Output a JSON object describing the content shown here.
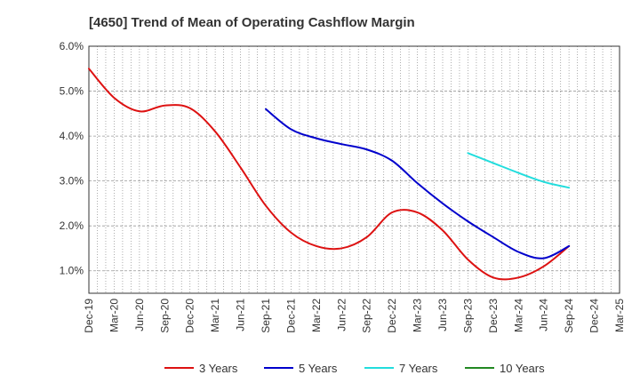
{
  "chart_data": {
    "type": "line",
    "title": "[4650]  Trend of Mean of Operating Cashflow Margin",
    "xlabel": "",
    "ylabel": "",
    "ylim": [
      0.5,
      6.0
    ],
    "y_ticks": [
      "1.0%",
      "2.0%",
      "3.0%",
      "4.0%",
      "5.0%",
      "6.0%"
    ],
    "y_tick_values": [
      1.0,
      2.0,
      3.0,
      4.0,
      5.0,
      6.0
    ],
    "x_tick_labels": [
      "Dec-19",
      "Mar-20",
      "Jun-20",
      "Sep-20",
      "Dec-20",
      "Mar-21",
      "Jun-21",
      "Sep-21",
      "Dec-21",
      "Mar-22",
      "Jun-22",
      "Sep-22",
      "Dec-22",
      "Mar-23",
      "Jun-23",
      "Sep-23",
      "Dec-23",
      "Mar-24",
      "Jun-24",
      "Sep-24",
      "Dec-24",
      "Mar-25"
    ],
    "grid": true,
    "legend_position": "bottom",
    "series": [
      {
        "name": "3 Years",
        "color": "#dd1111",
        "points": [
          [
            0,
            5.5
          ],
          [
            1,
            4.85
          ],
          [
            2,
            4.55
          ],
          [
            3,
            4.68
          ],
          [
            4,
            4.62
          ],
          [
            5,
            4.1
          ],
          [
            6,
            3.3
          ],
          [
            7,
            2.45
          ],
          [
            8,
            1.85
          ],
          [
            9,
            1.55
          ],
          [
            10,
            1.5
          ],
          [
            11,
            1.75
          ],
          [
            12,
            2.3
          ],
          [
            13,
            2.3
          ],
          [
            14,
            1.9
          ],
          [
            15,
            1.25
          ],
          [
            16,
            0.85
          ],
          [
            17,
            0.85
          ],
          [
            18,
            1.1
          ],
          [
            19,
            1.55
          ]
        ]
      },
      {
        "name": "5 Years",
        "color": "#0000cc",
        "points": [
          [
            7,
            4.6
          ],
          [
            8,
            4.15
          ],
          [
            9,
            3.95
          ],
          [
            10,
            3.82
          ],
          [
            11,
            3.7
          ],
          [
            12,
            3.45
          ],
          [
            13,
            2.95
          ],
          [
            14,
            2.5
          ],
          [
            15,
            2.1
          ],
          [
            16,
            1.75
          ],
          [
            17,
            1.42
          ],
          [
            18,
            1.28
          ],
          [
            19,
            1.55
          ]
        ]
      },
      {
        "name": "7 Years",
        "color": "#22dddd",
        "points": [
          [
            15,
            3.62
          ],
          [
            16,
            3.4
          ],
          [
            17,
            3.18
          ],
          [
            18,
            2.98
          ],
          [
            19,
            2.85
          ]
        ]
      },
      {
        "name": "10 Years",
        "color": "#228822",
        "points": []
      }
    ]
  }
}
